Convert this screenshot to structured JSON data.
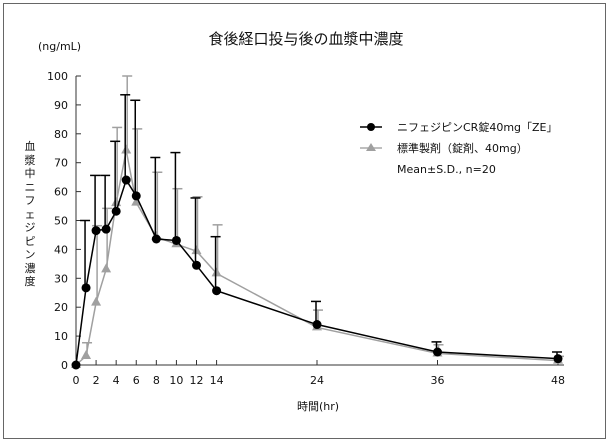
{
  "chart_data": {
    "type": "line",
    "title": "食後経口投与後の血漿中濃度",
    "unit": "(ng/mL)",
    "ylabel": "血漿中ニフェジピン濃度",
    "xlabel": "時間(hr)",
    "xlim": [
      0,
      48
    ],
    "ylim": [
      0,
      100
    ],
    "xticks": [
      0,
      2,
      4,
      6,
      8,
      10,
      12,
      14,
      24,
      36,
      48
    ],
    "yticks": [
      0,
      10,
      20,
      30,
      40,
      50,
      60,
      70,
      80,
      90,
      100
    ],
    "x": [
      0,
      1,
      2,
      3,
      4,
      5,
      6,
      8,
      10,
      12,
      14,
      24,
      36,
      48
    ],
    "series": [
      {
        "name": "ニフェジピンCR錠40mg「ZE」",
        "color": "#000000",
        "marker": "circle",
        "values": [
          0,
          26.7,
          46.5,
          47,
          53.2,
          64,
          58.5,
          43.6,
          43.1,
          34.5,
          25.7,
          14,
          4.5,
          2.2
        ],
        "sd_upper": [
          0,
          50,
          65.6,
          65.6,
          77.4,
          93.5,
          91.6,
          71.8,
          73.5,
          57.8,
          44.4,
          22,
          8,
          4.5
        ]
      },
      {
        "name": "標準製剤（錠剤、40mg）",
        "color": "#a0a0a0",
        "marker": "triangle",
        "values": [
          0,
          3.1,
          21.6,
          33.1,
          56,
          74.2,
          56.2,
          44.3,
          41.8,
          39.4,
          31.7,
          13,
          4,
          1.5
        ],
        "sd_upper": [
          0,
          7.7,
          48.2,
          54.2,
          82.2,
          100,
          81.7,
          66.7,
          61,
          58.2,
          48.5,
          19,
          7,
          3
        ]
      }
    ],
    "annotation": "Mean±S.D., n=20",
    "grid": false,
    "legend": "right"
  }
}
